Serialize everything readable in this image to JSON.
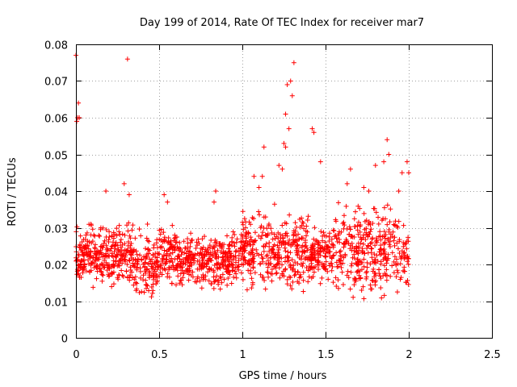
{
  "chart_data": {
    "type": "scatter",
    "title": "Day 199 of 2014, Rate Of TEC Index for receiver mar7",
    "xlabel": "GPS time / hours",
    "ylabel": "ROTI / TECUs",
    "xlim": [
      0,
      2.5
    ],
    "ylim": [
      0,
      0.08
    ],
    "xticks": [
      0,
      0.5,
      1,
      1.5,
      2,
      2.5
    ],
    "xtick_labels": [
      "0",
      "0.5",
      "1",
      "1.5",
      "2",
      "2.5"
    ],
    "yticks": [
      0,
      0.01,
      0.02,
      0.03,
      0.04,
      0.05,
      0.06,
      0.07,
      0.08
    ],
    "ytick_labels": [
      "0",
      "0.01",
      "0.02",
      "0.03",
      "0.04",
      "0.05",
      "0.06",
      "0.07",
      "0.08"
    ],
    "grid": true,
    "marker": "+",
    "color": "#ff0000",
    "series": [
      {
        "name": "ROTI",
        "note": "dense cloud of points between about 0.008 and 0.035 TECU/min from 0 to 2 hours; notable outliers listed below",
        "x": [
          0.0,
          0.005,
          0.01,
          0.015,
          0.02,
          0.31,
          1.25,
          1.26,
          1.27,
          1.29,
          1.3,
          1.31,
          1.28,
          1.26,
          1.42,
          1.43,
          1.47,
          1.1,
          1.13,
          1.24,
          1.87,
          1.88,
          1.85,
          0.06,
          0.09,
          0.15,
          0.18,
          0.29,
          0.32,
          0.43,
          0.53,
          0.55,
          0.83,
          0.84,
          1.07,
          1.12,
          1.16,
          1.22,
          1.63,
          1.65,
          1.73,
          1.76,
          1.8,
          1.94,
          1.96,
          1.99,
          2.0
        ],
        "y": [
          0.077,
          0.059,
          0.06,
          0.064,
          0.06,
          0.076,
          0.053,
          0.061,
          0.069,
          0.07,
          0.066,
          0.075,
          0.057,
          0.052,
          0.057,
          0.056,
          0.048,
          0.041,
          0.052,
          0.046,
          0.054,
          0.05,
          0.048,
          0.028,
          0.031,
          0.03,
          0.04,
          0.042,
          0.039,
          0.031,
          0.039,
          0.037,
          0.037,
          0.04,
          0.044,
          0.044,
          0.031,
          0.047,
          0.042,
          0.046,
          0.041,
          0.04,
          0.047,
          0.04,
          0.045,
          0.048,
          0.045
        ]
      }
    ]
  }
}
